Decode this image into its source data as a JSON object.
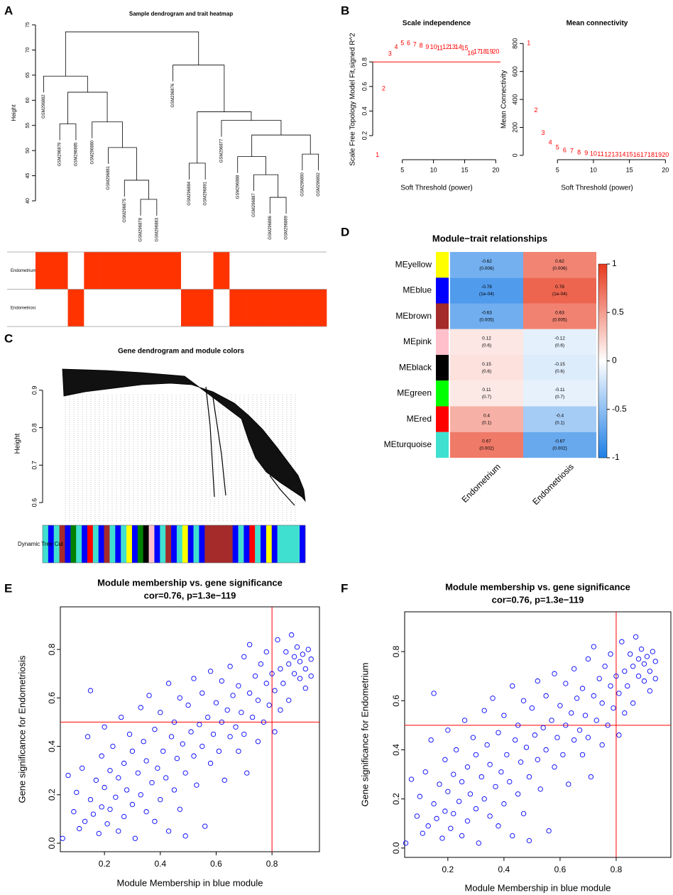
{
  "chart_data": [
    {
      "type": "sample_dendrogram",
      "panel": "A",
      "title": "Sample dendrogram and trait heatmap",
      "ylabel": "Height",
      "ylim": [
        40,
        75
      ],
      "yticks": [
        40,
        45,
        50,
        55,
        60,
        65,
        70,
        75
      ],
      "tree": {
        "height": 73.6,
        "children": [
          {
            "height": 64.8,
            "children": [
              {
                "label": "GSM296882"
              },
              {
                "height": 61.6,
                "children": [
                  {
                    "height": 55.3,
                    "children": [
                      {
                        "label": "GSM296879"
                      },
                      {
                        "label": "GSM296885"
                      }
                    ]
                  },
                  {
                    "height": 55.7,
                    "children": [
                      {
                        "label": "GSM296880"
                      },
                      {
                        "height": 50.6,
                        "children": [
                          {
                            "label": "GSM296881"
                          },
                          {
                            "height": 44.1,
                            "children": [
                              {
                                "label": "GSM296875"
                              },
                              {
                                "height": 40.3,
                                "children": [
                                  {
                                    "label": "GSM296878"
                                  },
                                  {
                                    "label": "GSM296883"
                                  }
                                ]
                              }
                            ]
                          }
                        ]
                      }
                    ]
                  }
                ]
              }
            ]
          },
          {
            "height": 67.0,
            "children": [
              {
                "label": "GSM296876"
              },
              {
                "height": 57.7,
                "children": [
                  {
                    "height": 47.5,
                    "children": [
                      {
                        "label": "GSM296884"
                      },
                      {
                        "label": "GSM296891"
                      }
                    ]
                  },
                  {
                    "height": 56.0,
                    "children": [
                      {
                        "label": "GSM296877"
                      },
                      {
                        "height": 53.1,
                        "children": [
                          {
                            "height": 48.8,
                            "children": [
                              {
                                "label": "GSM296888"
                              },
                              {
                                "height": 45.2,
                                "children": [
                                  {
                                    "label": "GSM296887"
                                  },
                                  {
                                    "height": 40.7,
                                    "children": [
                                      {
                                        "label": "GSM296886"
                                      },
                                      {
                                        "label": "GSM296889"
                                      }
                                    ]
                                  }
                                ]
                              }
                            ]
                          },
                          {
                            "height": 49.3,
                            "children": [
                              {
                                "label": "GSM296890"
                              },
                              {
                                "label": "GSM296892"
                              }
                            ]
                          }
                        ]
                      }
                    ]
                  }
                ]
              }
            ]
          }
        ]
      },
      "traits": [
        {
          "name": "Endometrium",
          "values": [
            1,
            1,
            0,
            1,
            1,
            1,
            1,
            1,
            1,
            0,
            0,
            1,
            0,
            0,
            0,
            0,
            0,
            0
          ]
        },
        {
          "name": "Endometriosis",
          "values": [
            0,
            0,
            1,
            0,
            0,
            0,
            0,
            0,
            0,
            1,
            1,
            0,
            1,
            1,
            1,
            1,
            1,
            1
          ]
        }
      ],
      "color": "#ff3300"
    },
    {
      "type": "scatter",
      "panel": "B",
      "marker": "text",
      "title": "Scale independence",
      "xlabel": "Soft Threshold (power)",
      "ylabel": "Scale Free Topology Model Fit,signed R^2",
      "x": [
        1,
        2,
        3,
        4,
        5,
        6,
        7,
        8,
        9,
        10,
        11,
        12,
        13,
        14,
        15,
        16,
        17,
        18,
        19,
        20
      ],
      "values": [
        0.04,
        0.58,
        0.865,
        0.92,
        0.95,
        0.95,
        0.94,
        0.93,
        0.92,
        0.92,
        0.91,
        0.92,
        0.92,
        0.92,
        0.91,
        0.87,
        0.88,
        0.88,
        0.88,
        0.88
      ],
      "xlim": [
        0.24,
        20.76
      ],
      "ylim": [
        0.004,
        0.986
      ],
      "xticks": [
        5,
        10,
        15,
        20
      ],
      "yticks": [
        0.2,
        0.4,
        0.6,
        0.8
      ],
      "hline": 0.8,
      "line_color": "#ff0000",
      "color": "#ff0000"
    },
    {
      "type": "scatter",
      "marker": "text",
      "title": "Mean connectivity",
      "xlabel": "Soft Threshold (power)",
      "ylabel": "Mean Connectivity",
      "x": [
        1,
        2,
        3,
        4,
        5,
        6,
        7,
        8,
        9,
        10,
        11,
        12,
        13,
        14,
        15,
        16,
        17,
        18,
        19,
        20
      ],
      "values": [
        800,
        320,
        160,
        90,
        55,
        35,
        30,
        20,
        15,
        8,
        6,
        5,
        4,
        3,
        3,
        2,
        2,
        2,
        1,
        1
      ],
      "xlim": [
        0.24,
        20.76
      ],
      "ylim": [
        -31,
        832
      ],
      "xticks": [
        5,
        10,
        15,
        20
      ],
      "yticks": [
        0,
        200,
        400,
        600,
        800
      ],
      "color": "#ff0000"
    },
    {
      "type": "gene_dendrogram",
      "panel": "C",
      "title": "Gene dendrogram and module colors",
      "ylabel": "Height",
      "row_label": "Dynamic Tree Cut",
      "ylim": [
        0.549,
        0.966
      ],
      "yticks": [
        0.6,
        0.7,
        0.8,
        0.9
      ],
      "module_colors": [
        "turquoise",
        "blue",
        "turquoise",
        "brown",
        "blue",
        "green",
        "turquoise",
        "blue",
        "red",
        "turquoise",
        "blue",
        "brown",
        "turquoise",
        "blue",
        "turquoise",
        "yellow",
        "blue",
        "green",
        "black",
        "pink",
        "blue",
        "turquoise",
        "brown",
        "blue",
        "turquoise",
        "yellow",
        "blue",
        "turquoise",
        "blue",
        "brown",
        "brown",
        "brown",
        "brown",
        "brown",
        "blue",
        "turquoise",
        "blue",
        "red",
        "turquoise",
        "blue",
        "yellow",
        "blue",
        "turquoise",
        "turquoise",
        "turquoise",
        "turquoise",
        "blue"
      ]
    },
    {
      "type": "heatmap",
      "panel": "D",
      "title": "Module−trait relationships",
      "rows": [
        "MEyellow",
        "MEblue",
        "MEbrown",
        "MEpink",
        "MEblack",
        "MEgreen",
        "MEred",
        "MEturquoise"
      ],
      "row_colors": [
        "#ffff00",
        "#0000ff",
        "#a52a2a",
        "#ffc0cb",
        "#000000",
        "#00ff00",
        "#ff0000",
        "#40e0d0"
      ],
      "columns": [
        "Endometrium",
        "Endometriosis"
      ],
      "values": [
        [
          -0.62,
          0.62
        ],
        [
          -0.78,
          0.78
        ],
        [
          -0.63,
          0.63
        ],
        [
          0.12,
          -0.12
        ],
        [
          0.15,
          -0.15
        ],
        [
          0.11,
          -0.11
        ],
        [
          0.4,
          -0.4
        ],
        [
          0.67,
          -0.67
        ]
      ],
      "pvalue_labels": [
        [
          "(0.006)",
          "(0.006)"
        ],
        [
          "(1e-04)",
          "(1e-04)"
        ],
        [
          "(0.005)",
          "(0.005)"
        ],
        [
          "(0.6)",
          "(0.6)"
        ],
        [
          "(0.6)",
          "(0.6)"
        ],
        [
          "(0.7)",
          "(0.7)"
        ],
        [
          "(0.1)",
          "(0.1)"
        ],
        [
          "(0.002)",
          "(0.002)"
        ]
      ],
      "zlim": [
        -1,
        1
      ],
      "zticks": [
        -1,
        -0.5,
        0,
        0.5,
        1
      ],
      "colormap": [
        "#1e7fe6",
        "#ffffff",
        "#e8391d"
      ]
    },
    {
      "type": "scatter",
      "panel": "E",
      "marker": "circle",
      "box": true,
      "title": "Module membership vs. gene significance",
      "subtitle": "cor=0.76, p=1.3e−119",
      "xlabel": "Module Membership in blue module",
      "ylabel": "Gene significance for  Endometriosis",
      "x": [
        0.05,
        0.07,
        0.09,
        0.1,
        0.11,
        0.12,
        0.13,
        0.14,
        0.15,
        0.15,
        0.16,
        0.17,
        0.18,
        0.19,
        0.19,
        0.2,
        0.2,
        0.21,
        0.22,
        0.22,
        0.23,
        0.24,
        0.25,
        0.25,
        0.26,
        0.27,
        0.27,
        0.28,
        0.29,
        0.3,
        0.3,
        0.31,
        0.32,
        0.33,
        0.33,
        0.34,
        0.35,
        0.35,
        0.36,
        0.37,
        0.38,
        0.38,
        0.39,
        0.4,
        0.4,
        0.41,
        0.42,
        0.43,
        0.43,
        0.44,
        0.45,
        0.45,
        0.46,
        0.47,
        0.47,
        0.48,
        0.49,
        0.49,
        0.5,
        0.51,
        0.52,
        0.52,
        0.53,
        0.54,
        0.55,
        0.55,
        0.56,
        0.57,
        0.58,
        0.58,
        0.59,
        0.6,
        0.61,
        0.62,
        0.62,
        0.63,
        0.64,
        0.65,
        0.65,
        0.66,
        0.67,
        0.68,
        0.68,
        0.69,
        0.7,
        0.7,
        0.71,
        0.72,
        0.72,
        0.73,
        0.74,
        0.75,
        0.75,
        0.76,
        0.77,
        0.78,
        0.78,
        0.79,
        0.8,
        0.81,
        0.81,
        0.82,
        0.83,
        0.83,
        0.84,
        0.85,
        0.86,
        0.86,
        0.87,
        0.88,
        0.88,
        0.89,
        0.9,
        0.9,
        0.91,
        0.92,
        0.92,
        0.93,
        0.94,
        0.94
      ],
      "values": [
        0.02,
        0.28,
        0.13,
        0.21,
        0.06,
        0.31,
        0.09,
        0.44,
        0.63,
        0.18,
        0.12,
        0.26,
        0.04,
        0.36,
        0.15,
        0.48,
        0.23,
        0.08,
        0.3,
        0.14,
        0.4,
        0.19,
        0.27,
        0.05,
        0.52,
        0.33,
        0.11,
        0.22,
        0.45,
        0.16,
        0.38,
        0.02,
        0.29,
        0.56,
        0.2,
        0.42,
        0.13,
        0.34,
        0.61,
        0.25,
        0.47,
        0.09,
        0.31,
        0.54,
        0.18,
        0.38,
        0.27,
        0.66,
        0.05,
        0.44,
        0.22,
        0.5,
        0.35,
        0.6,
        0.14,
        0.41,
        0.03,
        0.29,
        0.57,
        0.46,
        0.36,
        0.68,
        0.24,
        0.49,
        0.4,
        0.62,
        0.07,
        0.52,
        0.33,
        0.71,
        0.45,
        0.58,
        0.38,
        0.5,
        0.67,
        0.26,
        0.55,
        0.44,
        0.73,
        0.61,
        0.48,
        0.38,
        0.65,
        0.54,
        0.77,
        0.45,
        0.29,
        0.62,
        0.82,
        0.52,
        0.69,
        0.42,
        0.59,
        0.74,
        0.5,
        0.66,
        0.79,
        0.57,
        0.7,
        0.46,
        0.63,
        0.84,
        0.72,
        0.55,
        0.66,
        0.79,
        0.74,
        0.59,
        0.86,
        0.7,
        0.77,
        0.81,
        0.68,
        0.75,
        0.78,
        0.72,
        0.64,
        0.8,
        0.76,
        0.69
      ],
      "xlim": [
        0.042,
        0.97
      ],
      "ylim": [
        -0.035,
        0.976
      ],
      "xticks": [
        0.2,
        0.4,
        0.6,
        0.8
      ],
      "yticks": [
        {
          "value": 0,
          "label": "0.0"
        },
        0.2,
        0.4,
        0.6,
        0.8
      ],
      "vline": 0.8,
      "hline": 0.5,
      "line_color": "#ff0000",
      "color": "#0000ff"
    },
    {
      "type": "scatter",
      "panel": "F",
      "marker": "circle",
      "box": true,
      "title": "Module membership vs. gene significance",
      "subtitle": "cor=0.76, p=1.3e−119",
      "xlabel": "Module Membership in blue module",
      "ylabel": "Gene significance for  Endometrium",
      "x": [
        0.05,
        0.07,
        0.09,
        0.1,
        0.11,
        0.12,
        0.13,
        0.14,
        0.15,
        0.15,
        0.16,
        0.17,
        0.18,
        0.19,
        0.19,
        0.2,
        0.2,
        0.21,
        0.22,
        0.22,
        0.23,
        0.24,
        0.25,
        0.25,
        0.26,
        0.27,
        0.27,
        0.28,
        0.29,
        0.3,
        0.3,
        0.31,
        0.32,
        0.33,
        0.33,
        0.34,
        0.35,
        0.35,
        0.36,
        0.37,
        0.38,
        0.38,
        0.39,
        0.4,
        0.4,
        0.41,
        0.42,
        0.43,
        0.43,
        0.44,
        0.45,
        0.45,
        0.46,
        0.47,
        0.47,
        0.48,
        0.49,
        0.49,
        0.5,
        0.51,
        0.52,
        0.52,
        0.53,
        0.54,
        0.55,
        0.55,
        0.56,
        0.57,
        0.58,
        0.58,
        0.59,
        0.6,
        0.61,
        0.62,
        0.62,
        0.63,
        0.64,
        0.65,
        0.65,
        0.66,
        0.67,
        0.68,
        0.68,
        0.69,
        0.7,
        0.7,
        0.71,
        0.72,
        0.72,
        0.73,
        0.74,
        0.75,
        0.75,
        0.76,
        0.77,
        0.78,
        0.78,
        0.79,
        0.8,
        0.81,
        0.81,
        0.82,
        0.83,
        0.83,
        0.84,
        0.85,
        0.86,
        0.86,
        0.87,
        0.88,
        0.88,
        0.89,
        0.9,
        0.9,
        0.91,
        0.92,
        0.92,
        0.93,
        0.94,
        0.94
      ],
      "values": [
        0.02,
        0.28,
        0.13,
        0.21,
        0.06,
        0.31,
        0.09,
        0.44,
        0.63,
        0.18,
        0.12,
        0.26,
        0.04,
        0.36,
        0.15,
        0.48,
        0.23,
        0.08,
        0.3,
        0.14,
        0.4,
        0.19,
        0.27,
        0.05,
        0.52,
        0.33,
        0.11,
        0.22,
        0.45,
        0.16,
        0.38,
        0.02,
        0.29,
        0.56,
        0.2,
        0.42,
        0.13,
        0.34,
        0.61,
        0.25,
        0.47,
        0.09,
        0.31,
        0.54,
        0.18,
        0.38,
        0.27,
        0.66,
        0.05,
        0.44,
        0.22,
        0.5,
        0.35,
        0.6,
        0.14,
        0.41,
        0.03,
        0.29,
        0.57,
        0.46,
        0.36,
        0.68,
        0.24,
        0.49,
        0.4,
        0.62,
        0.07,
        0.52,
        0.33,
        0.71,
        0.45,
        0.58,
        0.38,
        0.5,
        0.67,
        0.26,
        0.55,
        0.44,
        0.73,
        0.61,
        0.48,
        0.38,
        0.65,
        0.54,
        0.77,
        0.45,
        0.29,
        0.62,
        0.82,
        0.52,
        0.69,
        0.42,
        0.59,
        0.74,
        0.5,
        0.66,
        0.79,
        0.57,
        0.7,
        0.46,
        0.63,
        0.84,
        0.72,
        0.55,
        0.66,
        0.79,
        0.74,
        0.59,
        0.86,
        0.7,
        0.77,
        0.81,
        0.68,
        0.75,
        0.78,
        0.72,
        0.64,
        0.8,
        0.76,
        0.69
      ],
      "xlim": [
        0.046,
        0.995
      ],
      "ylim": [
        -0.038,
        0.962
      ],
      "xticks": [
        0.2,
        0.4,
        0.6,
        0.8
      ],
      "yticks": [
        {
          "value": 0,
          "label": "0.0"
        },
        0.2,
        0.4,
        0.6,
        0.8
      ],
      "vline": 0.8,
      "hline": 0.5,
      "line_color": "#ff0000",
      "color": "#0000ff"
    }
  ]
}
